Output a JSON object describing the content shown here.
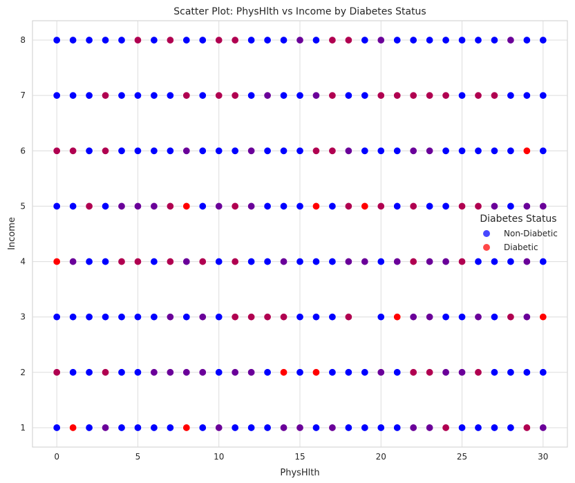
{
  "chart_data": {
    "type": "scatter",
    "title": "Scatter Plot: PhysHlth vs Income by Diabetes Status",
    "xlabel": "PhysHlth",
    "ylabel": "Income",
    "xlim": [
      -1.5,
      31.5
    ],
    "ylim": [
      0.65,
      8.35
    ],
    "xticks": [
      0,
      5,
      10,
      15,
      20,
      25,
      30
    ],
    "yticks": [
      1,
      2,
      3,
      4,
      5,
      6,
      7,
      8
    ],
    "grid": true,
    "legend": {
      "title": "Diabetes Status",
      "placement": "center-right",
      "entries": [
        {
          "label": "Non-Diabetic",
          "color": "#0000ff"
        },
        {
          "label": "Diabetic",
          "color": "#ff0000"
        }
      ]
    },
    "colors": {
      "non_diabetic": "#0000ff",
      "diabetic": "#ff0000",
      "both": "#6a0099",
      "both_mostly_diabetic": "#b00050"
    },
    "point_status_legend": {
      "n": "Non-Diabetic only",
      "d": "Diabetic only",
      "m": "Both overlapping",
      "r": "Both overlapping, mostly Diabetic"
    },
    "rows": [
      {
        "income": 8,
        "status": "nnnnnrnrnnrrnnnmnrrnmnnnnnnnmnn"
      },
      {
        "income": 7,
        "status": "nnnrnnnnrnrrnmnnmrnnrrrrrnrrnnn"
      },
      {
        "income": 6,
        "status": "rrnrnnnnmnnnmnnnrrmnnnmmnnnnndn"
      },
      {
        "income": 5,
        "status": "nnrnmmmrdnmrmnnndnrdrnrnnrrmnmm"
      },
      {
        "income": 4,
        "status": "dmnnrrnrmrnrnnmnnnmmnmrmmrnnnmn"
      },
      {
        "income": 3,
        "status": "nnnnnnnmnmnrrrrnnnr-ndmmnnmnrmd"
      },
      {
        "income": 2,
        "status": "rnnrnnmmmmnmmndndnnnmnrrmmrnnnn"
      },
      {
        "income": 1,
        "status": "ndnmnnnndnmnnnmmnmnnnnmmrnnnnrm"
      }
    ]
  }
}
